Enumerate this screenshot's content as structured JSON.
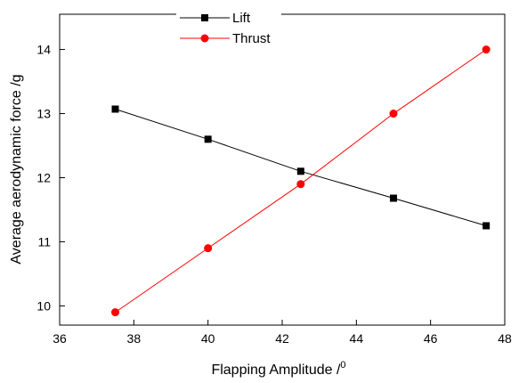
{
  "chart_data": {
    "type": "line",
    "title": "",
    "xlabel": "Flapping Amplitude /",
    "xlabel_superscript": "0",
    "ylabel": "Average aerodynamic force /g",
    "xlim": [
      36,
      48
    ],
    "ylim": [
      9.7,
      14.55
    ],
    "xticks": [
      36,
      38,
      40,
      42,
      44,
      46,
      48
    ],
    "yticks": [
      10,
      11,
      12,
      13,
      14
    ],
    "grid": false,
    "legend_position": "top-center",
    "x": [
      37.5,
      40,
      42.5,
      45,
      47.5
    ],
    "series": [
      {
        "name": "Lift",
        "color": "#000000",
        "marker": "square",
        "values": [
          13.07,
          12.6,
          12.1,
          11.68,
          11.25
        ]
      },
      {
        "name": "Thrust",
        "color": "#ff0000",
        "marker": "circle",
        "values": [
          9.9,
          10.9,
          11.9,
          13.0,
          14.0
        ]
      }
    ]
  }
}
